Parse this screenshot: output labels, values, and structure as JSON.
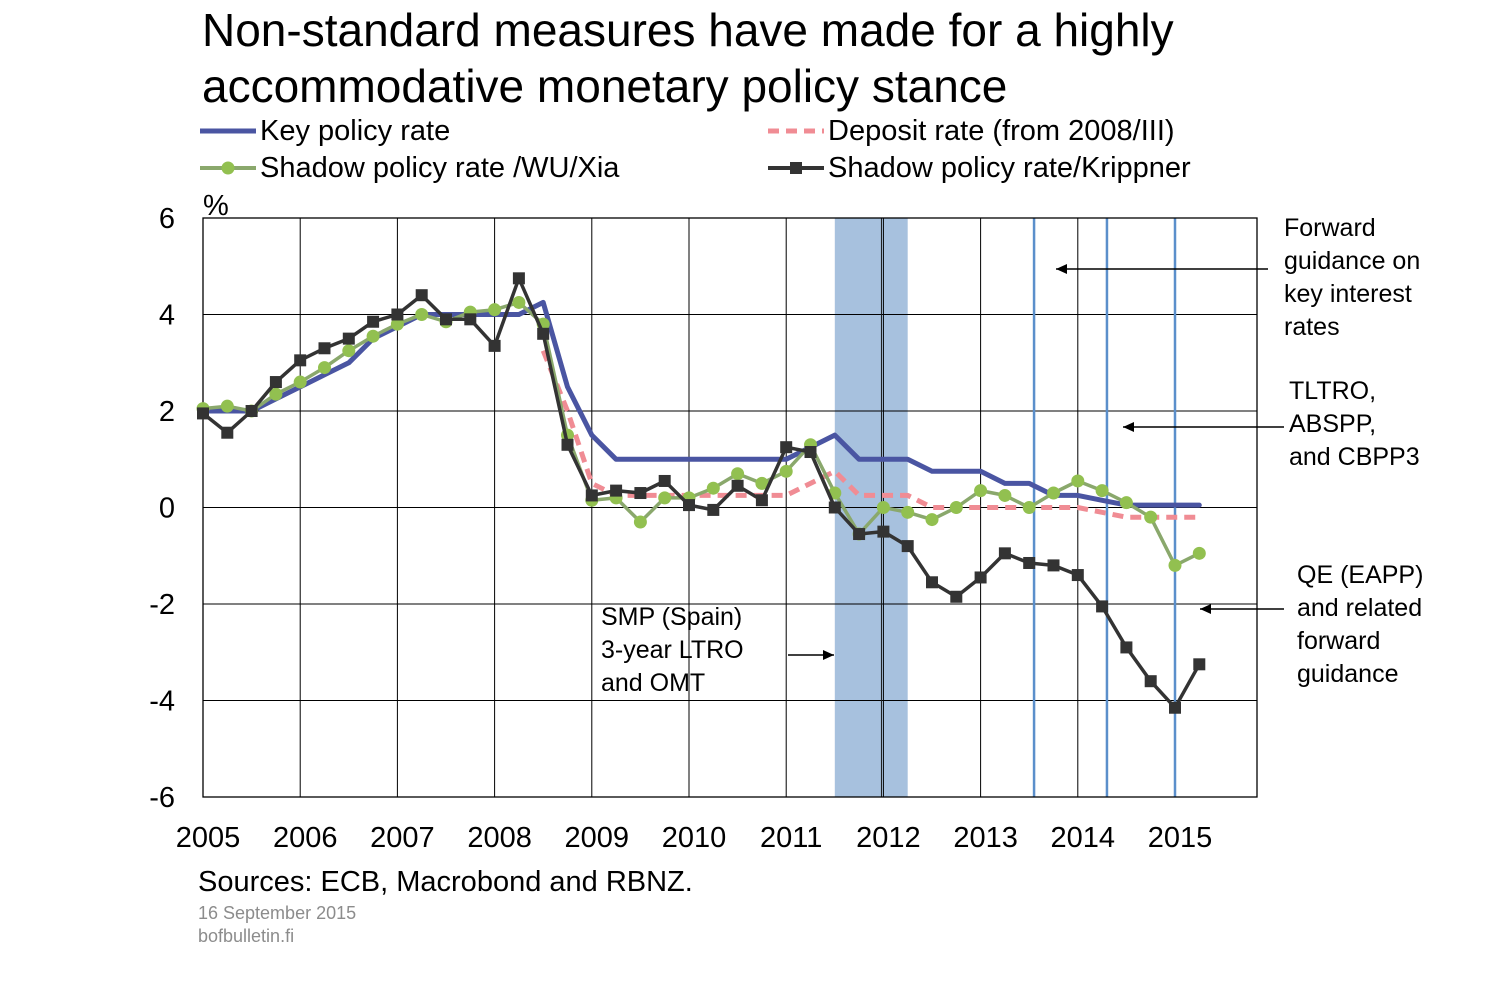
{
  "title": {
    "line1": "Non-standard measures have made for a highly",
    "line2": "accommodative monetary policy stance"
  },
  "legend": [
    {
      "key": "key",
      "label": "Key policy rate"
    },
    {
      "key": "deposit",
      "label": "Deposit rate (from 2008/III)"
    },
    {
      "key": "wuxia",
      "label": "Shadow policy rate /WU/Xia"
    },
    {
      "key": "krippner",
      "label": "Shadow policy rate/Krippner"
    }
  ],
  "annotations": {
    "forward_guidance": [
      "Forward",
      "guidance on",
      "key interest",
      "rates"
    ],
    "tltro": [
      "TLTRO,",
      "ABSPP,",
      "and CBPP3"
    ],
    "qe": [
      "QE (EAPP)",
      "and related",
      "forward",
      "guidance"
    ],
    "smp": [
      "SMP (Spain)",
      "3-year LTRO",
      "and OMT"
    ]
  },
  "source": "Sources: ECB, Macrobond and RBNZ.",
  "date": "16 September 2015",
  "site": "bofbulletin.fi",
  "colors": {
    "key": "#4a55a2",
    "deposit": "#f08c94",
    "wuxia": "#8aa86c",
    "wuxia_marker": "#92c050",
    "krippner": "#333333",
    "shade": "#a7c1de",
    "event_line": "#5b8fcb"
  },
  "chart_data": {
    "type": "line",
    "title": "",
    "xlabel": "",
    "ylabel": "%",
    "xlim": [
      2005,
      2015.85
    ],
    "ylim": [
      -6,
      6
    ],
    "xticks": [
      "2005",
      "2006",
      "2007",
      "2008",
      "2009",
      "2010",
      "2011",
      "2012",
      "2013",
      "2014",
      "2015"
    ],
    "yticks": [
      "6",
      "4",
      "2",
      "0",
      "-2",
      "-4",
      "-6"
    ],
    "ytick_values": [
      6,
      4,
      2,
      0,
      -2,
      -4,
      -6
    ],
    "grid": true,
    "legend_position": "top",
    "shaded_periods": [
      {
        "start": 2011.5,
        "end": 2012.25
      }
    ],
    "shade_divider": 2011.98,
    "event_lines": [
      2013.55,
      2014.3,
      2015.0
    ],
    "series": [
      {
        "key": "key",
        "name": "Key policy rate",
        "x": [
          2005,
          2005.5,
          2005.75,
          2006,
          2006.25,
          2006.5,
          2006.75,
          2007,
          2007.25,
          2007.5,
          2007.75,
          2008,
          2008.25,
          2008.5,
          2008.75,
          2009,
          2009.25,
          2009.5,
          2009.75,
          2010,
          2010.25,
          2010.5,
          2010.75,
          2011,
          2011.25,
          2011.5,
          2011.75,
          2012,
          2012.25,
          2012.5,
          2012.75,
          2013,
          2013.25,
          2013.5,
          2013.75,
          2014,
          2014.25,
          2014.5,
          2014.75,
          2015,
          2015.25
        ],
        "values": [
          2.0,
          2.0,
          2.25,
          2.5,
          2.75,
          3.0,
          3.5,
          3.75,
          4.0,
          4.0,
          4.0,
          4.0,
          4.0,
          4.25,
          2.5,
          1.5,
          1.0,
          1.0,
          1.0,
          1.0,
          1.0,
          1.0,
          1.0,
          1.0,
          1.25,
          1.5,
          1.0,
          1.0,
          1.0,
          0.75,
          0.75,
          0.75,
          0.5,
          0.5,
          0.25,
          0.25,
          0.15,
          0.05,
          0.05,
          0.05,
          0.05
        ],
        "markers": false,
        "dashed": false
      },
      {
        "key": "deposit",
        "name": "Deposit rate (from 2008/III)",
        "x": [
          2008.5,
          2008.75,
          2009,
          2009.25,
          2009.5,
          2009.75,
          2010,
          2010.25,
          2010.5,
          2010.75,
          2011,
          2011.25,
          2011.5,
          2011.75,
          2012,
          2012.25,
          2012.5,
          2012.75,
          2013,
          2013.25,
          2013.5,
          2013.75,
          2014,
          2014.25,
          2014.5,
          2014.75,
          2015,
          2015.25
        ],
        "values": [
          3.25,
          2.0,
          0.5,
          0.25,
          0.25,
          0.25,
          0.25,
          0.25,
          0.25,
          0.25,
          0.25,
          0.5,
          0.75,
          0.25,
          0.25,
          0.25,
          0.0,
          0.0,
          0.0,
          0.0,
          0.0,
          0.0,
          0.0,
          -0.1,
          -0.2,
          -0.2,
          -0.2,
          -0.2
        ],
        "markers": false,
        "dashed": true
      },
      {
        "key": "wuxia",
        "name": "Shadow policy rate /WU/Xia",
        "x": [
          2005,
          2005.25,
          2005.5,
          2005.75,
          2006,
          2006.25,
          2006.5,
          2006.75,
          2007,
          2007.25,
          2007.5,
          2007.75,
          2008,
          2008.25,
          2008.5,
          2008.75,
          2009,
          2009.25,
          2009.5,
          2009.75,
          2010,
          2010.25,
          2010.5,
          2010.75,
          2011,
          2011.25,
          2011.5,
          2011.75,
          2012,
          2012.25,
          2012.5,
          2012.75,
          2013,
          2013.25,
          2013.5,
          2013.75,
          2014,
          2014.25,
          2014.5,
          2014.75,
          2015,
          2015.25
        ],
        "values": [
          2.05,
          2.1,
          2.0,
          2.35,
          2.6,
          2.9,
          3.25,
          3.55,
          3.8,
          4.0,
          3.85,
          4.05,
          4.1,
          4.25,
          3.8,
          1.5,
          0.15,
          0.2,
          -0.3,
          0.2,
          0.2,
          0.4,
          0.7,
          0.5,
          0.75,
          1.3,
          0.3,
          -0.55,
          0.0,
          -0.1,
          -0.25,
          0.0,
          0.35,
          0.25,
          0.0,
          0.3,
          0.55,
          0.35,
          0.1,
          -0.2,
          -1.2,
          -0.95
        ],
        "markers": "circle",
        "dashed": false
      },
      {
        "key": "krippner",
        "name": "Shadow policy rate/Krippner",
        "x": [
          2005,
          2005.25,
          2005.5,
          2005.75,
          2006,
          2006.25,
          2006.5,
          2006.75,
          2007,
          2007.25,
          2007.5,
          2007.75,
          2008,
          2008.25,
          2008.5,
          2008.75,
          2009,
          2009.25,
          2009.5,
          2009.75,
          2010,
          2010.25,
          2010.5,
          2010.75,
          2011,
          2011.25,
          2011.5,
          2011.75,
          2012,
          2012.25,
          2012.5,
          2012.75,
          2013,
          2013.25,
          2013.5,
          2013.75,
          2014,
          2014.25,
          2014.5,
          2014.75,
          2015,
          2015.25
        ],
        "values": [
          1.95,
          1.55,
          2.0,
          2.6,
          3.05,
          3.3,
          3.5,
          3.85,
          4.0,
          4.4,
          3.9,
          3.9,
          3.35,
          4.75,
          3.6,
          1.3,
          0.25,
          0.35,
          0.3,
          0.55,
          0.05,
          -0.05,
          0.45,
          0.15,
          1.25,
          1.15,
          0.0,
          -0.55,
          -0.5,
          -0.8,
          -1.55,
          -1.85,
          -1.45,
          -0.95,
          -1.15,
          -1.2,
          -1.4,
          -2.05,
          -2.9,
          -3.6,
          -4.15,
          -3.25
        ],
        "markers": "square",
        "dashed": false
      }
    ]
  }
}
